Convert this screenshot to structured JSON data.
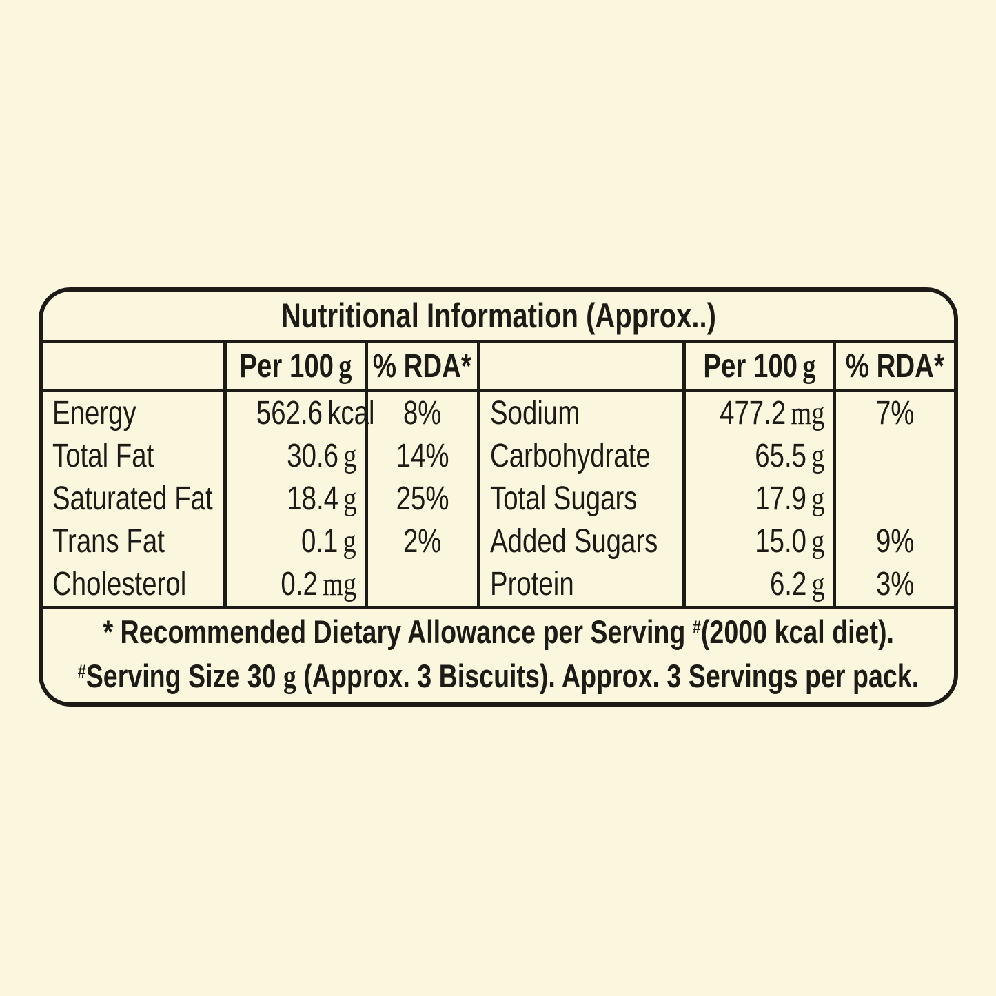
{
  "colors": {
    "background": "#fbf7de",
    "ink": "#1d1b15"
  },
  "label": {
    "title": "Nutritional Information (Approx..)",
    "columns": {
      "per100_label": "Per 100",
      "per100_unit": "g",
      "rda_label": "% RDA*"
    },
    "left": {
      "rows": [
        {
          "name": "Energy",
          "value": "562.6",
          "unit": "kcal",
          "rda": "8%"
        },
        {
          "name": "Total Fat",
          "value": "30.6",
          "unit": "g",
          "rda": "14%"
        },
        {
          "name": "Saturated Fat",
          "value": "18.4",
          "unit": "g",
          "rda": "25%"
        },
        {
          "name": "Trans Fat",
          "value": "0.1",
          "unit": "g",
          "rda": "2%"
        },
        {
          "name": "Cholesterol",
          "value": "0.2",
          "unit": "mg",
          "rda": ""
        }
      ]
    },
    "right": {
      "rows": [
        {
          "name": "Sodium",
          "value": "477.2",
          "unit": "mg",
          "rda": "7%"
        },
        {
          "name": "Carbohydrate",
          "value": "65.5",
          "unit": "g",
          "rda": ""
        },
        {
          "name": "Total Sugars",
          "value": "17.9",
          "unit": "g",
          "rda": ""
        },
        {
          "name": "Added Sugars",
          "value": "15.0",
          "unit": "g",
          "rda": "9%"
        },
        {
          "name": "Protein",
          "value": "6.2",
          "unit": "g",
          "rda": "3%"
        }
      ]
    },
    "footnotes": {
      "line1_part1": "* Recommended Dietary Allowance per Serving ",
      "line1_sup": "#",
      "line1_part2": "(2000 kcal diet).",
      "line2_sup": "#",
      "line2_part1": "Serving Size 30 ",
      "line2_unit": "g",
      "line2_part2": " (Approx. 3 Biscuits). Approx. 3 Servings per pack."
    }
  }
}
